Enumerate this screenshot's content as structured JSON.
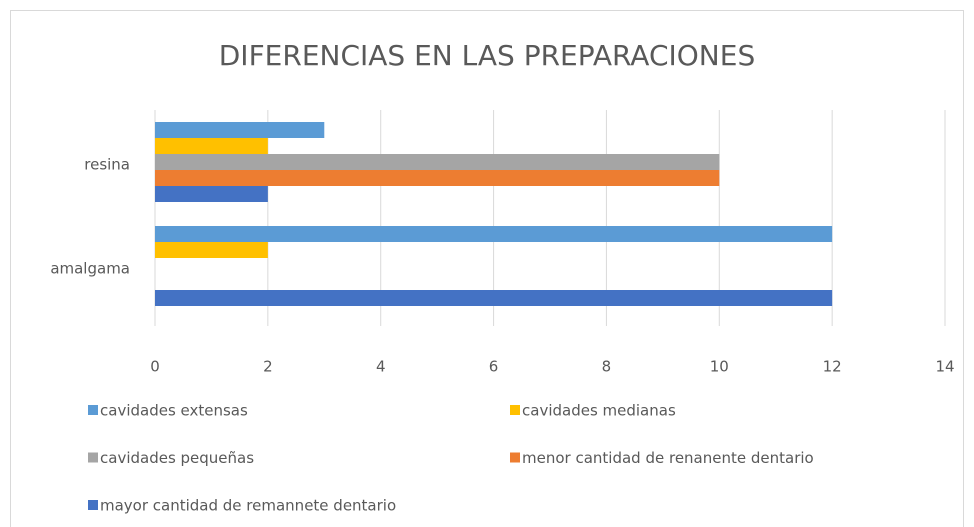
{
  "chart_data": {
    "type": "hbar",
    "title": "DIFERENCIAS EN LAS PREPARACIONES",
    "categories": [
      "resina",
      "amalgama"
    ],
    "series": [
      {
        "name": "cavidades extensas",
        "color": "#5b9bd5",
        "values": [
          3,
          12
        ]
      },
      {
        "name": "cavidades medianas",
        "color": "#ffc000",
        "values": [
          2,
          2
        ]
      },
      {
        "name": "cavidades pequeñas",
        "color": "#a5a5a5",
        "values": [
          10,
          0
        ]
      },
      {
        "name": "menor cantidad de renanente dentario",
        "color": "#ed7d31",
        "values": [
          10,
          0
        ]
      },
      {
        "name": "mayor cantidad de remannete dentario",
        "color": "#4472c4",
        "values": [
          2,
          12
        ]
      }
    ],
    "xlim": [
      0,
      14
    ],
    "xticks": [
      0,
      2,
      4,
      6,
      8,
      10,
      12,
      14
    ],
    "grid": true,
    "legend": "bottom"
  }
}
